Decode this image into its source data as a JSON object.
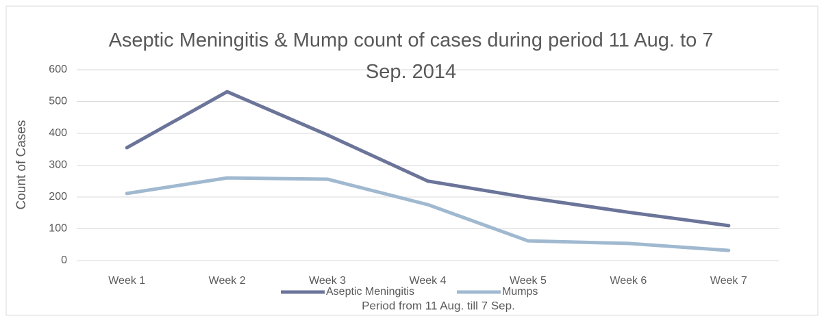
{
  "chart_data": {
    "type": "line",
    "title": "Aseptic Meningitis & Mump count of cases during period 11 Aug. to 7 Sep. 2014",
    "x_label": "Period from 11 Aug. till 7 Sep.",
    "y_label": "Count of Cases",
    "categories": [
      "Week 1",
      "Week 2",
      "Week 3",
      "Week 4",
      "Week 5",
      "Week 6",
      "Week 7"
    ],
    "series": [
      {
        "name": "Aseptic Meningitis",
        "color": "#6b7499",
        "values": [
          355,
          531,
          395,
          250,
          198,
          152,
          110
        ]
      },
      {
        "name": "Mumps",
        "color": "#a0b9d0",
        "values": [
          211,
          260,
          256,
          176,
          62,
          54,
          32
        ]
      }
    ],
    "ylim": [
      0,
      600
    ],
    "yticks": [
      0,
      100,
      200,
      300,
      400,
      500,
      600
    ],
    "grid": true,
    "legend": "bottom"
  }
}
